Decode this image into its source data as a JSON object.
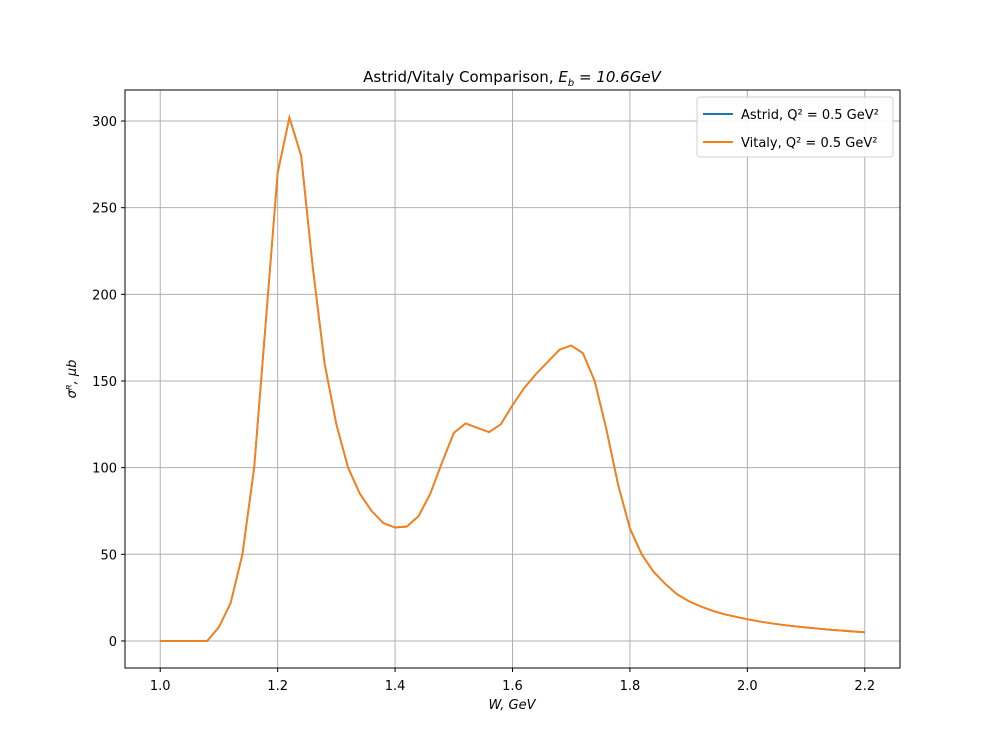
{
  "chart_data": {
    "type": "line",
    "title": [
      "Astrid/Vitaly Comparison, ",
      "E",
      "b",
      " = 10.6GeV"
    ],
    "x_label": "W, GeV",
    "y_label": "σᴿ, μb",
    "x": [
      1.0,
      1.02,
      1.04,
      1.06,
      1.08,
      1.1,
      1.12,
      1.14,
      1.16,
      1.18,
      1.2,
      1.22,
      1.24,
      1.26,
      1.28,
      1.3,
      1.32,
      1.34,
      1.36,
      1.38,
      1.4,
      1.42,
      1.44,
      1.46,
      1.48,
      1.5,
      1.52,
      1.54,
      1.56,
      1.58,
      1.6,
      1.62,
      1.64,
      1.66,
      1.68,
      1.7,
      1.72,
      1.74,
      1.76,
      1.78,
      1.8,
      1.82,
      1.84,
      1.86,
      1.88,
      1.9,
      1.92,
      1.94,
      1.96,
      1.98,
      2.0,
      2.02,
      2.04,
      2.06,
      2.08,
      2.1,
      2.12,
      2.14,
      2.16,
      2.18,
      2.2
    ],
    "series": [
      {
        "name": "Astrid, Q² = 0.5 GeV²",
        "color": "#1f77b4",
        "values": [
          0,
          0,
          0,
          0,
          0,
          8,
          22,
          50,
          100,
          185,
          270,
          302,
          280,
          215,
          160,
          125,
          100,
          85,
          75,
          68,
          65.5,
          66,
          72,
          85,
          103,
          120,
          125.5,
          123,
          120.5,
          125,
          136,
          146,
          154,
          161,
          168,
          170.5,
          166,
          150,
          122,
          90,
          65,
          50,
          40,
          33,
          27,
          23,
          20,
          17.5,
          15.5,
          14,
          12.5,
          11.3,
          10.2,
          9.3,
          8.5,
          7.8,
          7.1,
          6.5,
          6,
          5.5,
          5
        ]
      },
      {
        "name": "Vitaly, Q² = 0.5 GeV²",
        "color": "#ff7f0e",
        "values": [
          0,
          0,
          0,
          0,
          0,
          8,
          22,
          50,
          100,
          185,
          270,
          302,
          280,
          215,
          160,
          125,
          100,
          85,
          75,
          68,
          65.5,
          66,
          72,
          85,
          103,
          120,
          125.5,
          123,
          120.5,
          125,
          136,
          146,
          154,
          161,
          168,
          170.5,
          166,
          150,
          122,
          90,
          65,
          50,
          40,
          33,
          27,
          23,
          20,
          17.5,
          15.5,
          14,
          12.5,
          11.3,
          10.2,
          9.3,
          8.5,
          7.8,
          7.1,
          6.5,
          6,
          5.5,
          5
        ]
      }
    ],
    "xlim": [
      0.94,
      2.26
    ],
    "ylim": [
      -15.6,
      317.9
    ],
    "xticks": [
      {
        "value": 1.0,
        "label": "1.0"
      },
      1.2,
      1.4,
      1.6,
      1.8,
      {
        "value": 2.0,
        "label": "2.0"
      },
      2.2
    ],
    "yticks": [
      0,
      50,
      100,
      150,
      200,
      250,
      300
    ],
    "grid": true,
    "legend": "upper right"
  }
}
